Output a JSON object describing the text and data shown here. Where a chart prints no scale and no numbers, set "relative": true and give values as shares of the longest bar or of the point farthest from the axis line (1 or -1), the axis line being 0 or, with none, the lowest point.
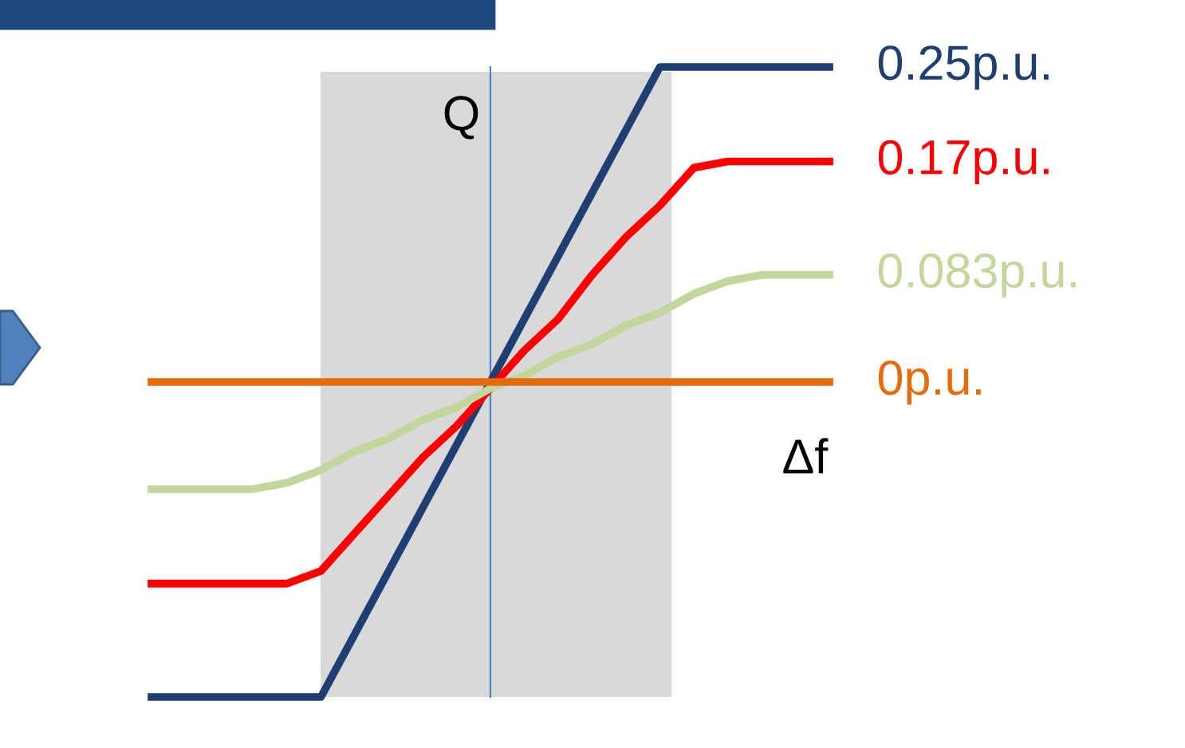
{
  "chart_data": {
    "type": "line",
    "relative": true,
    "xlabel": "Δf",
    "ylabel": "Q",
    "marker": "none",
    "line_style": "solid",
    "categories": [
      null,
      null,
      null,
      null,
      null,
      null,
      null,
      null,
      null,
      null,
      null,
      null,
      null,
      null,
      null,
      null,
      null,
      null,
      null,
      null,
      null
    ],
    "series": [
      {
        "name": "0.25p.u.",
        "color": "#1f3f73",
        "values": [
          0,
          0,
          0,
          0,
          0,
          0,
          0.1,
          0.2,
          0.3,
          0.4,
          0.5,
          0.6,
          0.7,
          0.8,
          0.9,
          1,
          1,
          1,
          1,
          1,
          1
        ]
      },
      {
        "name": "0.17p.u.",
        "color": "#ff0000",
        "values": [
          0.18,
          0.18,
          0.18,
          0.18,
          0.18,
          0.2,
          0.26,
          0.32,
          0.38,
          0.43,
          0.49,
          0.55,
          0.6,
          0.67,
          0.73,
          0.78,
          0.84,
          0.85,
          0.85,
          0.85,
          0.85
        ]
      },
      {
        "name": "0.083p.u.",
        "color": "#c3d69b",
        "values": [
          0.33,
          0.33,
          0.33,
          0.33,
          0.34,
          0.36,
          0.39,
          0.41,
          0.44,
          0.46,
          0.49,
          0.51,
          0.54,
          0.56,
          0.59,
          0.61,
          0.64,
          0.66,
          0.67,
          0.67,
          0.67
        ]
      },
      {
        "name": "0p.u.",
        "color": "#e46c0a",
        "values": [
          0.5,
          0.5,
          0.5,
          0.5,
          0.5,
          0.5,
          0.5,
          0.5,
          0.5,
          0.5,
          0.5,
          0.5,
          0.5,
          0.5,
          0.5,
          0.5,
          0.5,
          0.5,
          0.5,
          0.5,
          0.5
        ]
      }
    ]
  }
}
